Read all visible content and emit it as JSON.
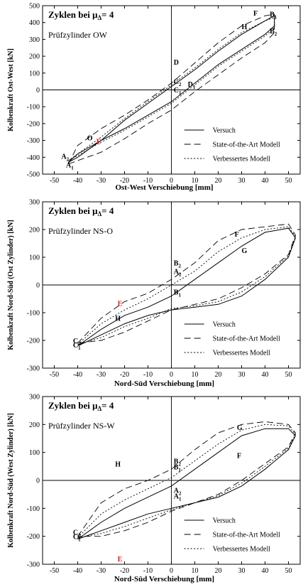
{
  "figure": {
    "legend_labels": [
      "Versuch",
      "State-of-the-Art Modell",
      "Verbessertes Modell"
    ],
    "heading_text": "Zyklen bei μ",
    "heading_sub": "Δ",
    "heading_value": "= 4"
  },
  "chart_data": [
    {
      "type": "line",
      "title": "Prüfzylinder OW",
      "header": "Zyklen bei μΔ= 4",
      "xlabel": "Ost-West Verschiebung [mm]",
      "ylabel": "Kolbenkraft Ost-West [kN]",
      "xlim": [
        -55,
        55
      ],
      "ylim": [
        -500,
        500
      ],
      "xticks": [
        -50,
        -40,
        -30,
        -20,
        -10,
        0,
        10,
        20,
        30,
        40,
        50
      ],
      "yticks": [
        -500,
        -400,
        -300,
        -200,
        -100,
        0,
        100,
        200,
        300,
        400,
        500
      ],
      "grid": false,
      "legend_position": "bottom-right",
      "annotations": [
        {
          "text": "F",
          "x": 35,
          "y": 440,
          "color": "#000000"
        },
        {
          "text": "B1",
          "x": 42,
          "y": 435,
          "color": "#000000"
        },
        {
          "text": "H",
          "x": 30,
          "y": 360,
          "color": "#000000"
        },
        {
          "text": "B2",
          "x": 42,
          "y": 335,
          "color": "#000000"
        },
        {
          "text": "D",
          "x": 1,
          "y": 150,
          "color": "#000000"
        },
        {
          "text": "C2",
          "x": 1,
          "y": 35,
          "color": "#000000"
        },
        {
          "text": "D1",
          "x": 7,
          "y": 18,
          "color": "#000000"
        },
        {
          "text": "C1",
          "x": 1,
          "y": -15,
          "color": "#000000"
        },
        {
          "text": "O",
          "x": -36,
          "y": -300,
          "color": "#000000"
        },
        {
          "text": "E",
          "x": -32,
          "y": -320,
          "color": "#d62020"
        },
        {
          "text": "A2",
          "x": -47,
          "y": -410,
          "color": "#000000"
        },
        {
          "text": "A1",
          "x": -45,
          "y": -460,
          "color": "#000000"
        }
      ],
      "series": [
        {
          "name": "Versuch",
          "style": "solid",
          "x": [
            -44,
            -40,
            -30,
            -20,
            -10,
            0,
            10,
            20,
            30,
            40,
            44,
            44,
            40,
            30,
            20,
            10,
            0,
            -10,
            -20,
            -30,
            -40,
            -44
          ],
          "y": [
            -430,
            -400,
            -300,
            -180,
            -80,
            20,
            120,
            230,
            330,
            410,
            440,
            380,
            330,
            240,
            150,
            40,
            -70,
            -150,
            -230,
            -300,
            -380,
            -430
          ]
        },
        {
          "name": "State-of-the-Art Modell",
          "style": "dashed",
          "x": [
            -44,
            -40,
            -30,
            -20,
            -10,
            0,
            10,
            20,
            30,
            40,
            44,
            44,
            40,
            30,
            20,
            10,
            0,
            -10,
            -20,
            -30,
            -40,
            -44
          ],
          "y": [
            -440,
            -330,
            -230,
            -150,
            -60,
            40,
            160,
            280,
            380,
            440,
            450,
            340,
            280,
            190,
            90,
            -10,
            -120,
            -200,
            -290,
            -370,
            -420,
            -440
          ]
        },
        {
          "name": "Verbessertes Modell",
          "style": "dotted",
          "x": [
            -44,
            -40,
            -30,
            -20,
            -10,
            0,
            10,
            20,
            30,
            40,
            44,
            44,
            40,
            30,
            20,
            10,
            0,
            -10,
            -20,
            -30,
            -40,
            -44
          ],
          "y": [
            -420,
            -380,
            -280,
            -170,
            -70,
            30,
            130,
            240,
            340,
            410,
            430,
            370,
            320,
            230,
            140,
            30,
            -80,
            -160,
            -240,
            -310,
            -390,
            -420
          ]
        }
      ]
    },
    {
      "type": "line",
      "title": "Prüfzylinder NS-O",
      "header": "Zyklen bei μΔ= 4",
      "xlabel": "Nord-Süd Verschiebung [mm]",
      "ylabel": "Kolbenkraft Nord-Süd (Ost Zylinder) [kN]",
      "xlim": [
        -55,
        55
      ],
      "ylim": [
        -300,
        300
      ],
      "xticks": [
        -50,
        -40,
        -30,
        -20,
        -10,
        0,
        10,
        20,
        30,
        40,
        50
      ],
      "yticks": [
        -300,
        -200,
        -100,
        0,
        100,
        200,
        300
      ],
      "grid": false,
      "legend_position": "bottom-right",
      "annotations": [
        {
          "text": "F",
          "x": 27,
          "y": 175,
          "color": "#000000"
        },
        {
          "text": "G",
          "x": 30,
          "y": 115,
          "color": "#000000"
        },
        {
          "text": "B2",
          "x": 1,
          "y": 70,
          "color": "#000000"
        },
        {
          "text": "A2",
          "x": 1,
          "y": 40,
          "color": "#000000"
        },
        {
          "text": "B1",
          "x": 1,
          "y": -35,
          "color": "#000000"
        },
        {
          "text": "E",
          "x": -23,
          "y": -75,
          "color": "#d62020"
        },
        {
          "text": "H",
          "x": -24,
          "y": -130,
          "color": "#000000"
        },
        {
          "text": "C2",
          "x": -42,
          "y": -210,
          "color": "#000000"
        },
        {
          "text": "C1",
          "x": -42,
          "y": -225,
          "color": "#000000"
        }
      ],
      "series": [
        {
          "name": "Versuch",
          "style": "solid",
          "x": [
            -40,
            -30,
            -20,
            -10,
            0,
            10,
            20,
            30,
            40,
            50,
            53,
            50,
            40,
            30,
            20,
            10,
            0,
            -10,
            -20,
            -30,
            -40
          ],
          "y": [
            -220,
            -160,
            -110,
            -80,
            -40,
            20,
            80,
            140,
            190,
            205,
            170,
            100,
            20,
            -40,
            -70,
            -80,
            -90,
            -110,
            -140,
            -180,
            -220
          ]
        },
        {
          "name": "State-of-the-Art Modell",
          "style": "dashed",
          "x": [
            -40,
            -30,
            -20,
            -10,
            0,
            10,
            20,
            30,
            40,
            50,
            53,
            50,
            40,
            30,
            20,
            10,
            0,
            -10,
            -20,
            -30,
            -40
          ],
          "y": [
            -210,
            -120,
            -60,
            -30,
            20,
            80,
            160,
            200,
            210,
            220,
            180,
            110,
            40,
            -10,
            -50,
            -70,
            -90,
            -130,
            -170,
            -200,
            -210
          ]
        },
        {
          "name": "Verbessertes Modell",
          "style": "dotted",
          "x": [
            -40,
            -30,
            -20,
            -10,
            0,
            10,
            20,
            30,
            40,
            50,
            53,
            50,
            40,
            30,
            20,
            10,
            0,
            -10,
            -20,
            -30,
            -40
          ],
          "y": [
            -215,
            -140,
            -90,
            -50,
            0,
            50,
            120,
            170,
            200,
            210,
            175,
            105,
            30,
            -25,
            -60,
            -75,
            -85,
            -120,
            -150,
            -190,
            -215
          ]
        }
      ]
    },
    {
      "type": "line",
      "title": "Prüfzylinder NS-W",
      "header": "Zyklen bei μΔ= 4",
      "xlabel": "Nord-Süd Verschiebung [mm]",
      "ylabel": "Kolbenkraft Nord-Süd (West Zylinder) [kN]",
      "xlim": [
        -55,
        55
      ],
      "ylim": [
        -300,
        300
      ],
      "xticks": [
        -50,
        -40,
        -30,
        -20,
        -10,
        0,
        10,
        20,
        30,
        40,
        50
      ],
      "yticks": [
        -300,
        -200,
        -100,
        0,
        100,
        200,
        300
      ],
      "grid": false,
      "legend_position": "bottom-right",
      "annotations": [
        {
          "text": "G",
          "x": 28,
          "y": 180,
          "color": "#000000"
        },
        {
          "text": "F",
          "x": 28,
          "y": 80,
          "color": "#000000"
        },
        {
          "text": "B2",
          "x": 1,
          "y": 60,
          "color": "#000000"
        },
        {
          "text": "B1",
          "x": 1,
          "y": 40,
          "color": "#000000"
        },
        {
          "text": "H",
          "x": -24,
          "y": 50,
          "color": "#000000"
        },
        {
          "text": "A2",
          "x": 1,
          "y": -45,
          "color": "#000000"
        },
        {
          "text": "A1",
          "x": 1,
          "y": -65,
          "color": "#000000"
        },
        {
          "text": "C2",
          "x": -42,
          "y": -195,
          "color": "#000000"
        },
        {
          "text": "C1",
          "x": -42,
          "y": -210,
          "color": "#000000"
        },
        {
          "text": "E",
          "x": -23,
          "y": -290,
          "color": "#d62020"
        }
      ],
      "series": [
        {
          "name": "Versuch",
          "style": "solid",
          "x": [
            -40,
            -30,
            -20,
            -10,
            0,
            10,
            20,
            30,
            40,
            50,
            53,
            50,
            40,
            30,
            20,
            10,
            0,
            -10,
            -20,
            -30,
            -40
          ],
          "y": [
            -210,
            -150,
            -100,
            -60,
            -20,
            40,
            100,
            160,
            185,
            185,
            160,
            110,
            40,
            -20,
            -60,
            -80,
            -100,
            -120,
            -150,
            -180,
            -210
          ]
        },
        {
          "name": "State-of-the-Art Modell",
          "style": "dashed",
          "x": [
            -40,
            -30,
            -20,
            -10,
            0,
            10,
            20,
            30,
            40,
            50,
            53,
            50,
            40,
            30,
            20,
            10,
            0,
            -10,
            -20,
            -30,
            -40
          ],
          "y": [
            -200,
            -80,
            -30,
            0,
            40,
            110,
            170,
            200,
            210,
            200,
            170,
            120,
            60,
            0,
            -50,
            -80,
            -110,
            -150,
            -180,
            -200,
            -200
          ]
        },
        {
          "name": "Verbessertes Modell",
          "style": "dotted",
          "x": [
            -40,
            -30,
            -20,
            -10,
            0,
            10,
            20,
            30,
            40,
            50,
            53,
            50,
            40,
            30,
            20,
            10,
            0,
            -10,
            -20,
            -30,
            -40
          ],
          "y": [
            -205,
            -120,
            -70,
            -30,
            10,
            70,
            130,
            180,
            200,
            195,
            165,
            115,
            50,
            -10,
            -55,
            -80,
            -105,
            -135,
            -165,
            -190,
            -205
          ]
        }
      ]
    }
  ]
}
